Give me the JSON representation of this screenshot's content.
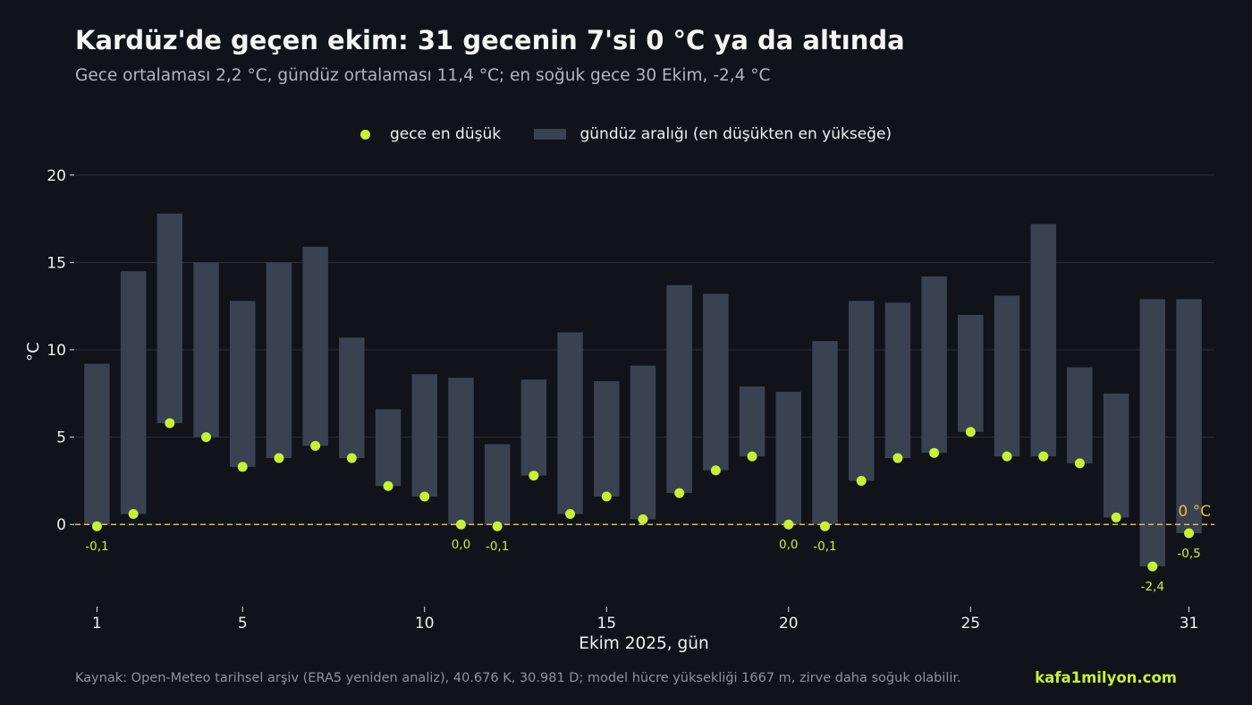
{
  "chart_data": {
    "type": "bar",
    "title": "Kardüz'de geçen ekim: 31 gecenin 7'si 0 °C ya da altında",
    "subtitle": "Gece ortalaması 2,2 °C, gündüz ortalaması 11,4 °C; en soğuk gece 30 Ekim, -2,4 °C",
    "xlabel": "Ekim 2025, gün",
    "ylabel": "°C",
    "xlim": [
      0.4,
      31.7
    ],
    "ylim": [
      -4.7,
      20.5
    ],
    "xticks": [
      1,
      5,
      10,
      15,
      20,
      25,
      31
    ],
    "yticks": [
      0,
      5,
      10,
      15,
      20
    ],
    "grid": true,
    "legend_position": "top-center",
    "colors": {
      "night_point": "#c8f035",
      "day_bar": "#3a4150",
      "zero_line": "#e8b84a"
    },
    "zero_line_label": "0 °C",
    "x": [
      1,
      2,
      3,
      4,
      5,
      6,
      7,
      8,
      9,
      10,
      11,
      12,
      13,
      14,
      15,
      16,
      17,
      18,
      19,
      20,
      21,
      22,
      23,
      24,
      25,
      26,
      27,
      28,
      29,
      30,
      31
    ],
    "series": [
      {
        "name": "gece en düşük",
        "kind": "scatter",
        "values": [
          -0.1,
          0.6,
          5.8,
          5.0,
          3.3,
          3.8,
          4.5,
          3.8,
          2.2,
          1.6,
          0.0,
          -0.1,
          2.8,
          0.6,
          1.6,
          0.3,
          1.8,
          3.1,
          3.9,
          0.0,
          -0.1,
          2.5,
          3.8,
          4.1,
          5.3,
          3.9,
          3.9,
          3.5,
          0.4,
          -2.4,
          -0.5
        ]
      },
      {
        "name": "gündüz aralığı (en düşükten en yükseğe)",
        "kind": "range-bar",
        "low": [
          0.0,
          0.6,
          5.8,
          5.0,
          3.3,
          3.8,
          4.5,
          3.8,
          2.2,
          1.6,
          0.0,
          0.0,
          2.8,
          0.6,
          1.6,
          0.3,
          1.8,
          3.1,
          3.9,
          0.0,
          0.0,
          2.5,
          3.8,
          4.1,
          5.3,
          3.9,
          3.9,
          3.5,
          0.4,
          -2.4,
          -0.5
        ],
        "high": [
          9.2,
          14.5,
          17.8,
          15.0,
          12.8,
          15.0,
          15.9,
          10.7,
          6.6,
          8.6,
          8.4,
          4.6,
          8.3,
          11.0,
          8.2,
          9.1,
          13.7,
          13.2,
          7.9,
          7.6,
          10.5,
          12.8,
          12.7,
          14.2,
          12.0,
          13.1,
          17.2,
          9.0,
          7.5,
          12.9,
          12.9
        ]
      }
    ],
    "annotations": [
      {
        "x": 1,
        "value": -0.1,
        "text": "-0,1"
      },
      {
        "x": 11,
        "value": 0.0,
        "text": "0,0"
      },
      {
        "x": 12,
        "value": -0.1,
        "text": "-0,1"
      },
      {
        "x": 20,
        "value": 0.0,
        "text": "0,0"
      },
      {
        "x": 21,
        "value": -0.1,
        "text": "-0,1"
      },
      {
        "x": 30,
        "value": -2.4,
        "text": "-2,4"
      },
      {
        "x": 31,
        "value": -0.5,
        "text": "-0,5"
      }
    ]
  },
  "footer": {
    "source": "Kaynak: Open-Meteo tarihsel arşiv (ERA5 yeniden analiz), 40.676 K, 30.981 D; model hücre yüksekliği 1667 m, zirve daha soğuk olabilir.",
    "brand": "kafa1milyon.com"
  }
}
